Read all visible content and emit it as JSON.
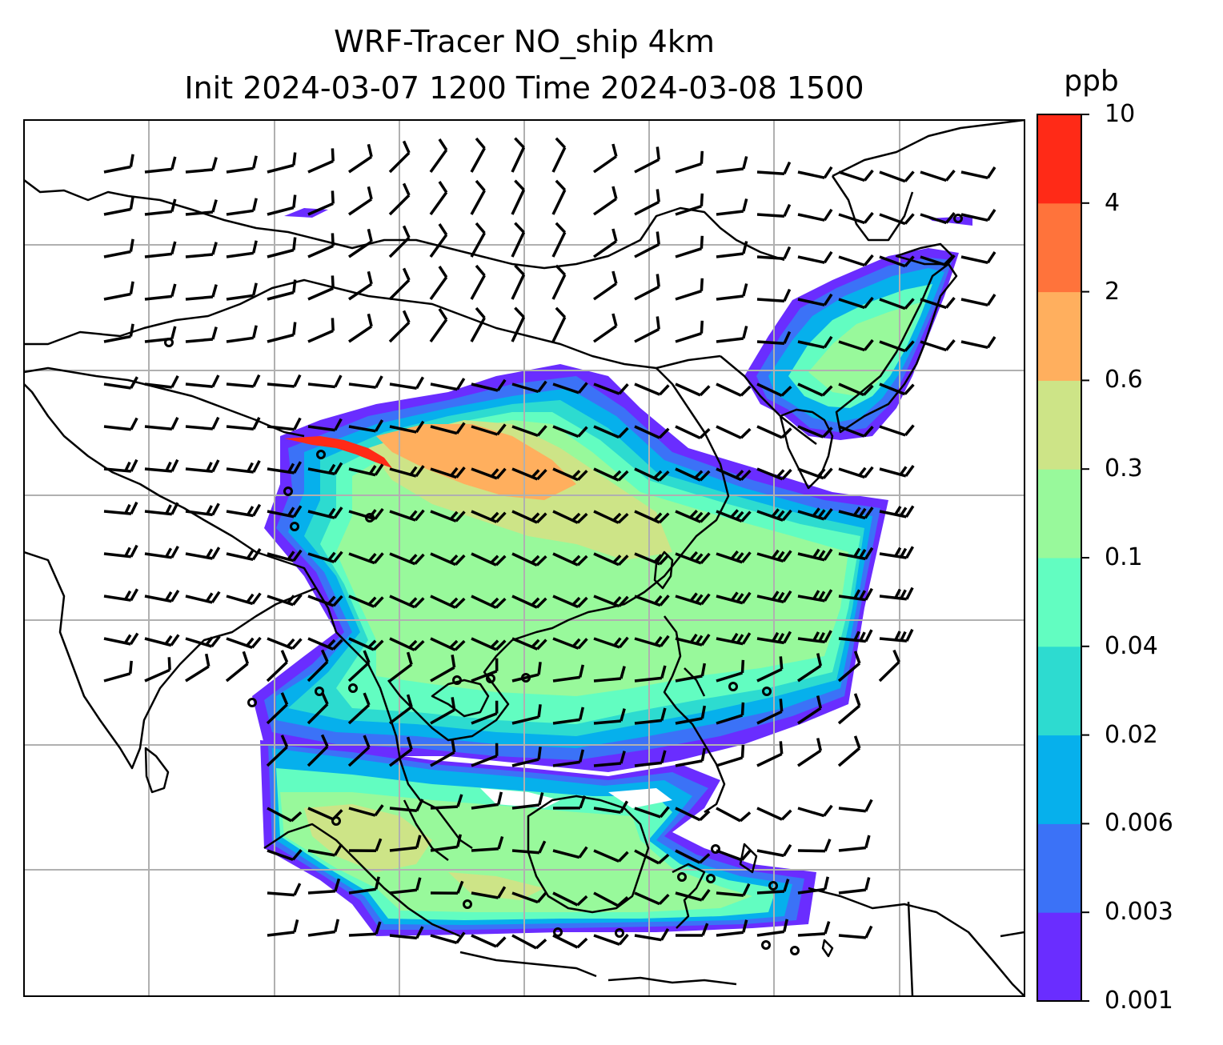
{
  "title": {
    "line1": "WRF-Tracer NO_ship 4km",
    "line2": "Init 2024-03-07 1200 Time 2024-03-08 1500"
  },
  "colorbar": {
    "unit": "ppb",
    "ticks": [
      "0.001",
      "0.003",
      "0.006",
      "0.02",
      "0.04",
      "0.1",
      "0.3",
      "0.6",
      "2",
      "4",
      "10"
    ],
    "colors": [
      "#6a2dff",
      "#3b72f7",
      "#06b0ec",
      "#2ddbd0",
      "#62fdc1",
      "#98f99b",
      "#cde487",
      "#ffaf5e",
      "#ff733b",
      "#ff2a17"
    ]
  },
  "map": {
    "background": "#ffffff",
    "coastline_color": "#000000",
    "grid_color": "#b0b0b0",
    "barb_color": "#000000"
  }
}
